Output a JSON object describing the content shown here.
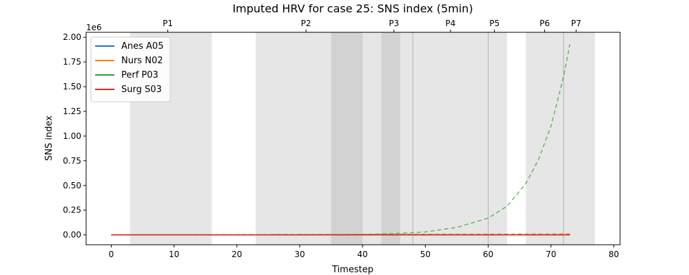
{
  "chart_data": {
    "type": "line",
    "title": "Imputed HRV for case 25: SNS index (5min)",
    "xlabel": "Timestep",
    "ylabel": "SNS index",
    "y_offset_text": "1e6",
    "xlim": [
      -4,
      81
    ],
    "ylim": [
      -0.1,
      2.05
    ],
    "x_ticks": [
      0,
      10,
      20,
      30,
      40,
      50,
      60,
      70,
      80
    ],
    "y_ticks": [
      0.0,
      0.25,
      0.5,
      0.75,
      1.0,
      1.25,
      1.5,
      1.75,
      2.0
    ],
    "y_tick_labels": [
      "0.00",
      "0.25",
      "0.50",
      "0.75",
      "1.00",
      "1.25",
      "1.50",
      "1.75",
      "2.00"
    ],
    "grid": false,
    "legend_position": "top-left",
    "phase_spans": [
      [
        3,
        16
      ],
      [
        23,
        40
      ],
      [
        35,
        40
      ],
      [
        40,
        48
      ],
      [
        43,
        46
      ],
      [
        48,
        60
      ],
      [
        60,
        63
      ],
      [
        66,
        72
      ],
      [
        72,
        77
      ]
    ],
    "phase_lines": [
      48,
      60,
      72
    ],
    "phase_labels": [
      {
        "x": 9,
        "label": "P1"
      },
      {
        "x": 31,
        "label": "P2"
      },
      {
        "x": 45,
        "label": "P3"
      },
      {
        "x": 54,
        "label": "P4"
      },
      {
        "x": 61,
        "label": "P5"
      },
      {
        "x": 69,
        "label": "P6"
      },
      {
        "x": 74,
        "label": "P7"
      }
    ],
    "series": [
      {
        "name": "Anes A05",
        "color": "#1f77b4",
        "solid_x": [
          0,
          73
        ],
        "solid_y": [
          0.0,
          0.0
        ],
        "dashed_x": [
          0,
          73
        ],
        "dashed_y": [
          0.0,
          0.005
        ]
      },
      {
        "name": "Nurs N02",
        "color": "#ff7f0e",
        "solid_x": [
          0,
          73
        ],
        "solid_y": [
          0.0,
          0.0
        ],
        "dashed_x": [
          0,
          73
        ],
        "dashed_y": [
          0.0,
          0.01
        ]
      },
      {
        "name": "Perf P03",
        "color": "#2ca02c",
        "solid_x": [],
        "solid_y": [],
        "dashed_x": [
          30,
          35,
          40,
          45,
          50,
          55,
          60,
          63,
          66,
          68,
          70,
          72,
          73
        ],
        "dashed_y": [
          0.0005,
          0.0015,
          0.004,
          0.012,
          0.03,
          0.075,
          0.17,
          0.29,
          0.52,
          0.76,
          1.1,
          1.6,
          1.93
        ]
      },
      {
        "name": "Surg S03",
        "color": "#d62728",
        "solid_x": [
          0,
          73
        ],
        "solid_y": [
          0.0,
          0.0
        ],
        "dashed_x": [],
        "dashed_y": []
      }
    ]
  }
}
